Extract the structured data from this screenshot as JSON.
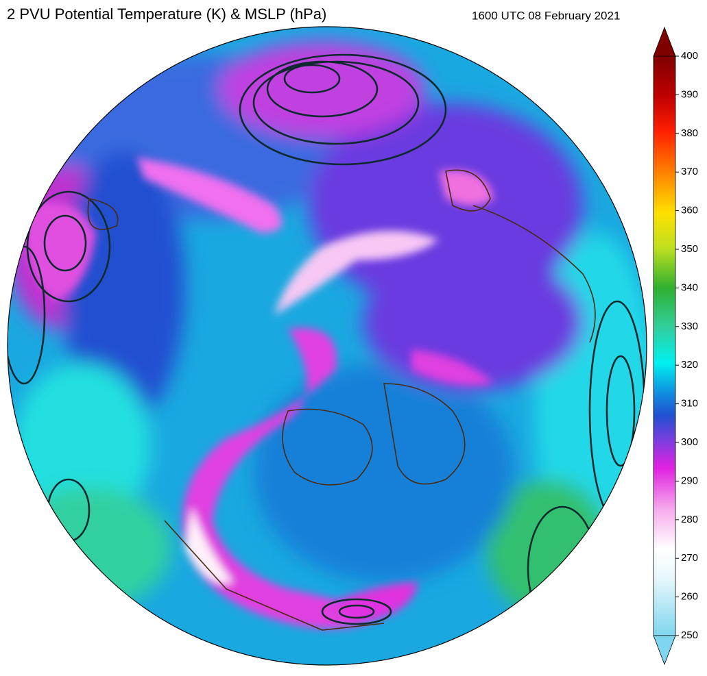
{
  "header": {
    "title": "2 PVU Potential Temperature (K) & MSLP (hPa)",
    "timestamp": "1600 UTC 08 February 2021"
  },
  "colorbar": {
    "lim": [
      250,
      400
    ],
    "ticks": [
      250,
      260,
      270,
      280,
      290,
      300,
      310,
      320,
      330,
      340,
      350,
      360,
      370,
      380,
      390,
      400
    ]
  }
}
